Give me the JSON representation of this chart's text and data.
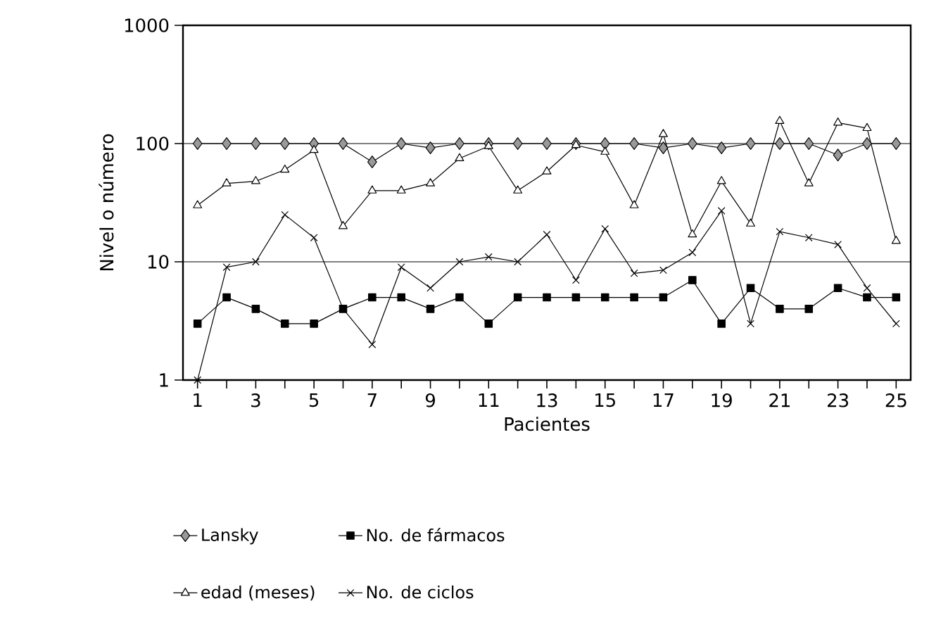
{
  "chart_data": {
    "type": "line",
    "xlabel": "Pacientes",
    "ylabel": "Nivel o número",
    "log": "y",
    "x": [
      1,
      2,
      3,
      4,
      5,
      6,
      7,
      8,
      9,
      10,
      11,
      12,
      13,
      14,
      15,
      16,
      17,
      18,
      19,
      20,
      21,
      22,
      23,
      24,
      25
    ],
    "xlim": [
      0.5,
      25.5
    ],
    "xticks": [
      1,
      {
        "value": 2,
        "label": null
      },
      3,
      {
        "value": 4,
        "label": null
      },
      5,
      {
        "value": 6,
        "label": null
      },
      7,
      {
        "value": 8,
        "label": null
      },
      9,
      {
        "value": 10,
        "label": null
      },
      11,
      {
        "value": 12,
        "label": null
      },
      13,
      {
        "value": 14,
        "label": null
      },
      15,
      {
        "value": 16,
        "label": null
      },
      17,
      {
        "value": 18,
        "label": null
      },
      19,
      {
        "value": 20,
        "label": null
      },
      21,
      {
        "value": 22,
        "label": null
      },
      23,
      {
        "value": 24,
        "label": null
      },
      25
    ],
    "ylim": [
      1,
      1000
    ],
    "yticks": [
      1,
      10,
      100,
      1000
    ],
    "grid": "y",
    "legend": "bottom",
    "series": [
      {
        "name": "Lansky",
        "color": "#999999",
        "marker": "diamond",
        "values": [
          100,
          100,
          100,
          100,
          100,
          100,
          70,
          100,
          92,
          100,
          100,
          100,
          100,
          100,
          100,
          100,
          92,
          100,
          92,
          100,
          100,
          100,
          80,
          100,
          100
        ]
      },
      {
        "name": "No. de fármacos",
        "color": "#000000",
        "marker": "square",
        "values": [
          3,
          5,
          4,
          3,
          3,
          4,
          5,
          5,
          4,
          5,
          3,
          5,
          5,
          5,
          5,
          5,
          5,
          7,
          3,
          6,
          4,
          4,
          6,
          5,
          5
        ]
      },
      {
        "name": "edad (meses)",
        "color": "#ffffff",
        "marker": "triangle",
        "values": [
          30,
          46,
          48,
          60,
          88,
          20,
          40,
          40,
          46,
          75,
          95,
          40,
          58,
          97,
          85,
          30,
          120,
          17,
          48,
          21,
          155,
          46,
          150,
          135,
          15
        ]
      },
      {
        "name": "No. de ciclos",
        "color": "#000000",
        "marker": "cross",
        "values": [
          1,
          9,
          10,
          25,
          16,
          4,
          2,
          9,
          6,
          10,
          11,
          10,
          17,
          7,
          19,
          8,
          8.5,
          12,
          27,
          3,
          18,
          16,
          14,
          6,
          3
        ]
      }
    ]
  }
}
